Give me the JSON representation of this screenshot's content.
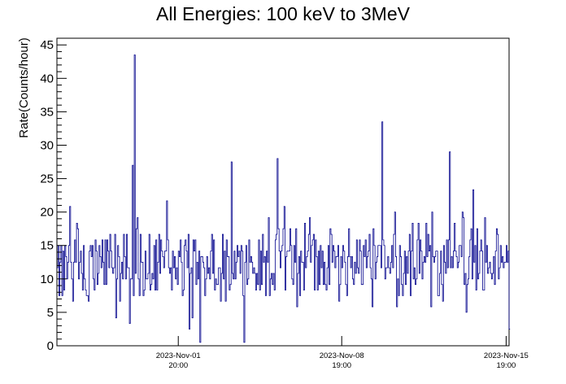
{
  "chart_data": {
    "type": "line",
    "title": "All Energies:  100 keV to 3MeV",
    "ylabel": "Rate(Counts/hour)",
    "xlabel": "",
    "ylim": [
      0,
      46
    ],
    "yticks": [
      0,
      5,
      10,
      15,
      20,
      25,
      30,
      35,
      40,
      45
    ],
    "xlim": [
      "2023-Oct-27 16:00",
      "2023-Nov-15 22:00"
    ],
    "xticks": [
      {
        "date": "2023-Nov-01 20:00",
        "line1": "2023-Nov-01",
        "line2": "20:00"
      },
      {
        "date": "2023-Nov-08 19:00",
        "line1": "2023-Nov-08",
        "line2": "19:00"
      },
      {
        "date": "2023-Nov-15 19:00",
        "line1": "2023-Nov-15",
        "line2": "19:00"
      }
    ],
    "grid": false,
    "series_color": "#00008b",
    "annotations": [
      {
        "date": "2023-Oct-30 23:00",
        "value": 43.5
      },
      {
        "date": "2023-Nov-10 12:00",
        "value": 33.5
      },
      {
        "date": "2023-Nov-13 09:00",
        "value": 29.0
      },
      {
        "date": "2023-Nov-06 01:00",
        "value": 28.0
      },
      {
        "date": "2023-Nov-04 02:00",
        "value": 27.5
      },
      {
        "date": "2023-Oct-30 21:00",
        "value": 27.0
      }
    ],
    "dips": [
      {
        "date": "2023-Nov-02 18:00",
        "value": 0.5
      },
      {
        "date": "2023-Nov-04 15:00",
        "value": 0.5
      },
      {
        "date": "2023-Nov-15 22:00",
        "value": 2.5
      }
    ]
  }
}
